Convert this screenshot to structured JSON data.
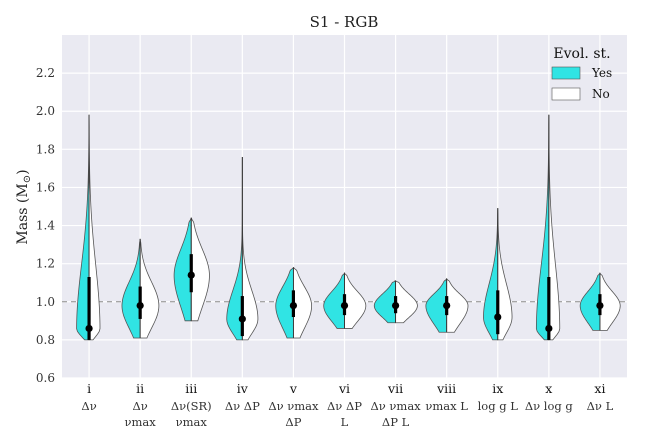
{
  "chart_data": {
    "type": "violin",
    "title": "S1 - RGB",
    "ylabel": "Mass (M",
    "ylabel_symbol": "⊙",
    "ylabel_close": ")",
    "ylim": [
      0.6,
      2.4
    ],
    "yticks": [
      "0.6",
      "0.8",
      "1.0",
      "1.2",
      "1.4",
      "1.6",
      "1.8",
      "2.0",
      "2.2"
    ],
    "reference_line": 1.0,
    "legend": {
      "title": "Evol. st.",
      "entries": [
        {
          "label": "Yes",
          "color": "#30e4e4"
        },
        {
          "label": "No",
          "color": "#ffffff"
        }
      ]
    },
    "categories": [
      {
        "id": "i",
        "line1": "Δν",
        "line2": "",
        "min": 0.8,
        "max": 1.98,
        "median": 0.86,
        "q1": 0.8,
        "q3": 1.13,
        "yes_w": 0.48,
        "no_w": 0.42
      },
      {
        "id": "ii",
        "line1": "Δν",
        "line2": "νmax",
        "min": 0.81,
        "max": 1.33,
        "median": 0.98,
        "q1": 0.91,
        "q3": 1.08,
        "yes_w": 0.7,
        "no_w": 0.72
      },
      {
        "id": "iii",
        "line1": "Δν(SR)",
        "line2": "νmax",
        "min": 0.9,
        "max": 1.44,
        "median": 1.14,
        "q1": 1.05,
        "q3": 1.25,
        "yes_w": 0.66,
        "no_w": 0.7
      },
      {
        "id": "iv",
        "line1": "Δν ΔP",
        "line2": "",
        "min": 0.8,
        "max": 1.76,
        "median": 0.91,
        "q1": 0.82,
        "q3": 1.03,
        "yes_w": 0.6,
        "no_w": 0.6
      },
      {
        "id": "v",
        "line1": "Δν νmax",
        "line2": "ΔP",
        "min": 0.81,
        "max": 1.18,
        "median": 0.98,
        "q1": 0.92,
        "q3": 1.06,
        "yes_w": 0.68,
        "no_w": 0.7
      },
      {
        "id": "vi",
        "line1": "Δν ΔP",
        "line2": "L",
        "min": 0.86,
        "max": 1.15,
        "median": 0.98,
        "q1": 0.93,
        "q3": 1.04,
        "yes_w": 0.8,
        "no_w": 0.82
      },
      {
        "id": "vii",
        "line1": "Δν νmax",
        "line2": "ΔP L",
        "min": 0.89,
        "max": 1.11,
        "median": 0.98,
        "q1": 0.94,
        "q3": 1.03,
        "yes_w": 0.82,
        "no_w": 0.84
      },
      {
        "id": "viii",
        "line1": "νmax L",
        "line2": "",
        "min": 0.84,
        "max": 1.12,
        "median": 0.98,
        "q1": 0.93,
        "q3": 1.03,
        "yes_w": 0.8,
        "no_w": 0.82
      },
      {
        "id": "ix",
        "line1": "log g  L",
        "line2": "",
        "min": 0.8,
        "max": 1.49,
        "median": 0.92,
        "q1": 0.83,
        "q3": 1.06,
        "yes_w": 0.55,
        "no_w": 0.55
      },
      {
        "id": "x",
        "line1": "Δν log g",
        "line2": "",
        "min": 0.8,
        "max": 1.98,
        "median": 0.86,
        "q1": 0.8,
        "q3": 1.13,
        "yes_w": 0.48,
        "no_w": 0.42
      },
      {
        "id": "xi",
        "line1": "Δν L",
        "line2": "",
        "min": 0.85,
        "max": 1.15,
        "median": 0.98,
        "q1": 0.93,
        "q3": 1.04,
        "yes_w": 0.76,
        "no_w": 0.78
      }
    ]
  }
}
